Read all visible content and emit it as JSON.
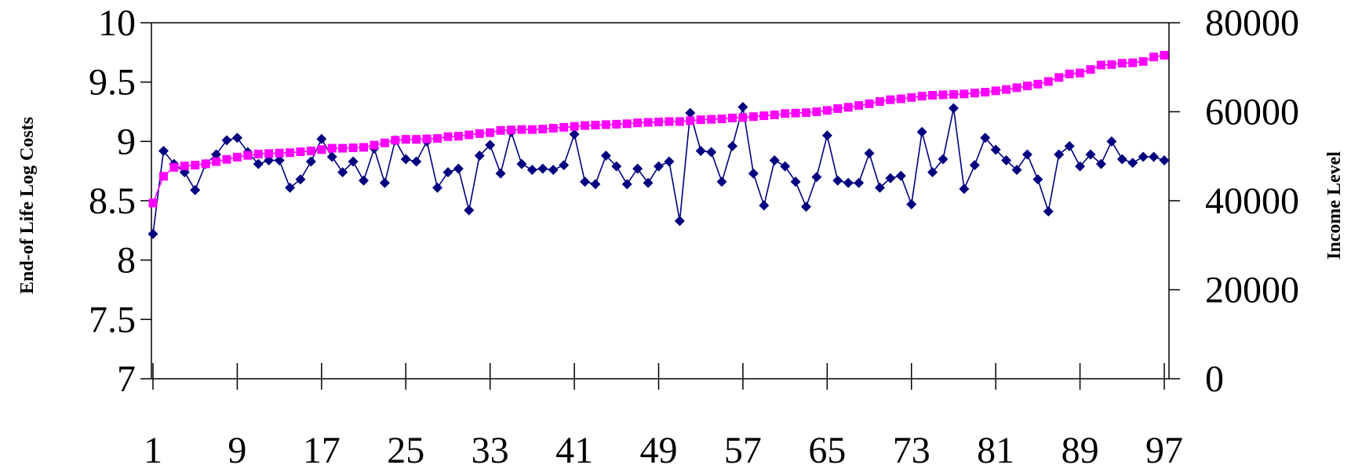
{
  "chart_data": {
    "type": "line",
    "title": "",
    "xlabel": "",
    "ylabel": "End-of Life Log Costs",
    "y2label": "Income Level",
    "x": [
      1,
      2,
      3,
      4,
      5,
      6,
      7,
      8,
      9,
      10,
      11,
      12,
      13,
      14,
      15,
      16,
      17,
      18,
      19,
      20,
      21,
      22,
      23,
      24,
      25,
      26,
      27,
      28,
      29,
      30,
      31,
      32,
      33,
      34,
      35,
      36,
      37,
      38,
      39,
      40,
      41,
      42,
      43,
      44,
      45,
      46,
      47,
      48,
      49,
      50,
      51,
      52,
      53,
      54,
      55,
      56,
      57,
      58,
      59,
      60,
      61,
      62,
      63,
      64,
      65,
      66,
      67,
      68,
      69,
      70,
      71,
      72,
      73,
      74,
      75,
      76,
      77,
      78,
      79,
      80,
      81,
      82,
      83,
      84,
      85,
      86,
      87,
      88,
      89,
      90,
      91,
      92,
      93,
      94,
      95,
      96,
      97
    ],
    "x_tick_labels": [
      "1",
      "9",
      "17",
      "25",
      "33",
      "41",
      "49",
      "57",
      "65",
      "73",
      "81",
      "89",
      "97"
    ],
    "ylim": [
      7,
      10
    ],
    "y_ticks": [
      "7",
      "7.5",
      "8",
      "8.5",
      "9",
      "9.5",
      "10"
    ],
    "y2lim": [
      0,
      80000
    ],
    "y2_ticks": [
      "0",
      "20000",
      "40000",
      "60000",
      "80000"
    ],
    "grid": false,
    "legend": "none",
    "series": [
      {
        "axis": "left",
        "color": "#000080",
        "marker": "diamond",
        "values": [
          8.22,
          8.92,
          8.81,
          8.74,
          8.59,
          8.81,
          8.89,
          9.01,
          9.03,
          8.91,
          8.81,
          8.84,
          8.84,
          8.61,
          8.68,
          8.83,
          9.02,
          8.87,
          8.74,
          8.83,
          8.67,
          8.94,
          8.65,
          9.01,
          8.85,
          8.83,
          9.0,
          8.61,
          8.74,
          8.77,
          8.42,
          8.88,
          8.97,
          8.73,
          9.08,
          8.81,
          8.76,
          8.77,
          8.76,
          8.8,
          9.06,
          8.66,
          8.64,
          8.88,
          8.79,
          8.64,
          8.77,
          8.65,
          8.79,
          8.83,
          8.33,
          9.24,
          8.92,
          8.91,
          8.66,
          8.96,
          9.29,
          8.73,
          8.46,
          8.84,
          8.79,
          8.66,
          8.45,
          8.7,
          9.05,
          8.67,
          8.65,
          8.65,
          8.9,
          8.61,
          8.69,
          8.71,
          8.47,
          9.08,
          8.74,
          8.85,
          9.28,
          8.6,
          8.8,
          9.03,
          8.93,
          8.84,
          8.76,
          8.89,
          8.68,
          8.41,
          8.89,
          8.96,
          8.79,
          8.89,
          8.81,
          9.0,
          8.85,
          8.82,
          8.87,
          8.87,
          8.84
        ]
      },
      {
        "axis": "right",
        "color": "#ff00ff",
        "marker": "square",
        "values": [
          39500,
          45500,
          47500,
          47800,
          48000,
          48300,
          48800,
          49300,
          49800,
          50200,
          50500,
          50600,
          50700,
          50800,
          51000,
          51200,
          51500,
          51800,
          51800,
          51900,
          52000,
          52500,
          53000,
          53600,
          53800,
          53800,
          53900,
          54000,
          54400,
          54500,
          54800,
          55100,
          55300,
          55800,
          55900,
          56000,
          56000,
          56100,
          56300,
          56500,
          56700,
          56900,
          57000,
          57100,
          57200,
          57300,
          57500,
          57600,
          57700,
          57800,
          57800,
          58000,
          58200,
          58300,
          58400,
          58600,
          58700,
          58900,
          59100,
          59300,
          59600,
          59700,
          59800,
          60000,
          60300,
          60700,
          61000,
          61400,
          61800,
          62300,
          62700,
          62900,
          63200,
          63500,
          63700,
          63800,
          63900,
          64000,
          64200,
          64400,
          64700,
          65000,
          65400,
          65800,
          66200,
          66800,
          67700,
          68500,
          68700,
          69500,
          70500,
          70600,
          70900,
          71000,
          71300,
          72300,
          72700
        ]
      }
    ]
  }
}
